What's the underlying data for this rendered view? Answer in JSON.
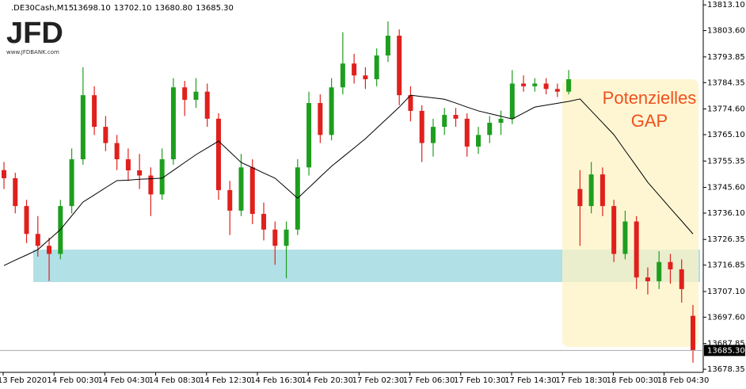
{
  "chart_data": {
    "type": "candlestick",
    "symbol": ".DE30Cash,M15",
    "header_labels": [
      "13698.10",
      "13702.10",
      "13680.80",
      "13685.30"
    ],
    "logo": "JFD",
    "logo_url": "www.JFDBANK.com",
    "annotation": [
      "Potenzielles",
      "GAP"
    ],
    "bull_color": "#1e9e1e",
    "bear_color": "#e0201c",
    "ma_color": "#000000",
    "ylim": [
      13677.2,
      13814.9
    ],
    "yticks": [
      {
        "value": 13813.1,
        "label": "13813.10"
      },
      {
        "value": 13803.6,
        "label": "13803.60"
      },
      13793.85,
      13784.35,
      {
        "value": 13774.6,
        "label": "13774.60"
      },
      {
        "value": 13765.1,
        "label": "13765.10"
      },
      13755.35,
      {
        "value": 13745.6,
        "label": "13745.60"
      },
      {
        "value": 13736.1,
        "label": "13736.10"
      },
      13726.35,
      13716.85,
      {
        "value": 13707.1,
        "label": "13707.10"
      },
      {
        "value": 13697.6,
        "label": "13697.60"
      },
      13687.85,
      13678.35
    ],
    "xlabels": [
      "13 Feb 2020",
      "14 Feb 00:30",
      "14 Feb 04:30",
      "14 Feb 08:30",
      "14 Feb 12:30",
      "14 Feb 16:30",
      "14 Feb 20:30",
      "17 Feb 02:30",
      "17 Feb 06:30",
      "17 Feb 10:30",
      "17 Feb 14:30",
      "17 Feb 18:30",
      "18 Feb 00:30",
      "18 Feb 04:30"
    ],
    "last_price": {
      "value": 13685.3,
      "label": "13685.30"
    },
    "support_zone": {
      "ylim": [
        13710.6,
        13722.6
      ],
      "color": "#a8dde3"
    },
    "gap_zone": {
      "ylim": [
        13686.6,
        13785.6
      ],
      "color": "#fdf3c4"
    },
    "candles": [
      [
        13752,
        13755,
        13745,
        13749
      ],
      [
        13749,
        13751,
        13736,
        13738.7
      ],
      [
        13738.7,
        13741,
        13725,
        13728.4
      ],
      [
        13728.4,
        13735,
        13720,
        13724
      ],
      [
        13724,
        13727,
        13711,
        13721
      ],
      [
        13721,
        13741,
        13719,
        13738.7
      ],
      [
        13738.7,
        13760,
        13736,
        13756
      ],
      [
        13756,
        13790,
        13754,
        13779.7
      ],
      [
        13779.7,
        13783,
        13765,
        13768
      ],
      [
        13768,
        13772,
        13759,
        13762
      ],
      [
        13762,
        13765,
        13752,
        13756
      ],
      [
        13756,
        13760,
        13748,
        13751.9
      ],
      [
        13751.9,
        13758,
        13745,
        13750
      ],
      [
        13750,
        13753,
        13735,
        13743
      ],
      [
        13743,
        13760,
        13741,
        13756
      ],
      [
        13756,
        13786,
        13754,
        13782.6
      ],
      [
        13782.6,
        13785,
        13772,
        13778
      ],
      [
        13778,
        13786,
        13775,
        13781
      ],
      [
        13781,
        13784,
        13768,
        13771
      ],
      [
        13771,
        13773,
        13741,
        13744.6
      ],
      [
        13744.6,
        13748,
        13728,
        13737
      ],
      [
        13737,
        13758,
        13735,
        13753
      ],
      [
        13753,
        13756,
        13732,
        13735.8
      ],
      [
        13735.8,
        13740,
        13726,
        13730
      ],
      [
        13730,
        13733,
        13717,
        13724
      ],
      [
        13724,
        13733,
        13712,
        13730
      ],
      [
        13730,
        13756,
        13728,
        13753
      ],
      [
        13753,
        13781,
        13750,
        13776.8
      ],
      [
        13776.8,
        13780,
        13762,
        13765
      ],
      [
        13765,
        13786,
        13763,
        13782.6
      ],
      [
        13782.6,
        13803,
        13780,
        13791.4
      ],
      [
        13791.4,
        13795,
        13784,
        13787
      ],
      [
        13787,
        13790,
        13782,
        13785.6
      ],
      [
        13785.6,
        13797,
        13783,
        13794.4
      ],
      [
        13794.4,
        13807,
        13792,
        13801.7
      ],
      [
        13801.7,
        13804,
        13776,
        13779.7
      ],
      [
        13779.7,
        13783,
        13770,
        13773.9
      ],
      [
        13773.9,
        13776,
        13755,
        13762
      ],
      [
        13762,
        13771,
        13757,
        13768
      ],
      [
        13768,
        13775,
        13765,
        13772.4
      ],
      [
        13772.4,
        13775,
        13768,
        13771
      ],
      [
        13771,
        13773,
        13757,
        13760.7
      ],
      [
        13760.7,
        13768,
        13758,
        13765
      ],
      [
        13765,
        13772,
        13762,
        13769.5
      ],
      [
        13769.5,
        13774,
        13765,
        13771
      ],
      [
        13771,
        13789,
        13769,
        13784
      ],
      [
        13784,
        13787,
        13781,
        13783
      ],
      [
        13783,
        13786,
        13781,
        13784
      ],
      [
        13784,
        13786,
        13780,
        13782
      ],
      [
        13782,
        13784,
        13779,
        13781
      ],
      [
        13781,
        13789,
        13780,
        13785.6
      ],
      [
        13745,
        13752,
        13724,
        13738.7
      ],
      [
        13738.7,
        13755,
        13736,
        13750.4
      ],
      [
        13750.4,
        13753,
        13735,
        13738.7
      ],
      [
        13738.7,
        13741,
        13718,
        13721
      ],
      [
        13721,
        13737,
        13719,
        13733
      ],
      [
        13733,
        13735,
        13708,
        13712.3
      ],
      [
        13712.3,
        13716,
        13706,
        13710.9
      ],
      [
        13710.9,
        13722,
        13708,
        13718
      ],
      [
        13718,
        13721,
        13710,
        13715.3
      ],
      [
        13715.3,
        13719,
        13703,
        13708
      ],
      [
        13698.1,
        13702.1,
        13680.8,
        13685.3
      ]
    ],
    "ma": [
      13716.7,
      13718.7,
      13720.6,
      13722.6,
      13726.3,
      13730,
      13735.1,
      13740.2,
      13742.8,
      13745.5,
      13748.1,
      13748.3,
      13748.6,
      13748.8,
      13749,
      13751.9,
      13754.8,
      13757.7,
      13760.2,
      13762.7,
      13758.8,
      13754.8,
      13752.9,
      13750.9,
      13749,
      13745.3,
      13741.6,
      13745.5,
      13749.5,
      13753.4,
      13756.8,
      13760.2,
      13763.6,
      13767.5,
      13771.4,
      13775.3,
      13779.7,
      13779.2,
      13778.7,
      13778.2,
      13776.8,
      13775.3,
      13773.9,
      13772.9,
      13771.9,
      13770.9,
      13773.1,
      13775.3,
      13776,
      13776.7,
      13777.4,
      13778.3,
      13773.9,
      13769.5,
      13765.1,
      13759.2,
      13753.4,
      13747.5,
      13742.7,
      13737.9,
      13733.2,
      13728.4
    ]
  }
}
